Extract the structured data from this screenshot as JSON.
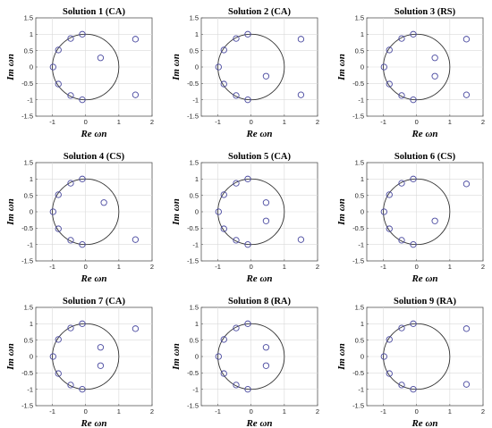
{
  "chart_data": [
    {
      "type": "scatter",
      "title": "Solution 1 (CA)",
      "xlabel": "Re ωn",
      "ylabel": "Im ωn",
      "xlim": [
        -1.5,
        2
      ],
      "ylim": [
        -1.5,
        1.5
      ],
      "grid": true,
      "xticks": [
        -1,
        0,
        1,
        2
      ],
      "yticks": [
        -1.5,
        -1,
        -0.5,
        0,
        0.5,
        1,
        1.5
      ],
      "unit_circle": true,
      "points": [
        [
          -0.1,
          1
        ],
        [
          -0.45,
          0.87
        ],
        [
          -0.82,
          0.52
        ],
        [
          -0.98,
          0
        ],
        [
          -0.82,
          -0.52
        ],
        [
          -0.45,
          -0.87
        ],
        [
          -0.1,
          -1
        ],
        [
          0.45,
          0.28
        ],
        [
          1.5,
          0.85
        ],
        [
          1.5,
          -0.85
        ]
      ]
    },
    {
      "type": "scatter",
      "title": "Solution 2 (CA)",
      "xlabel": "Re ωn",
      "ylabel": "Im ωn",
      "xlim": [
        -1.5,
        2
      ],
      "ylim": [
        -1.5,
        1.5
      ],
      "grid": true,
      "xticks": [
        -1,
        0,
        1,
        2
      ],
      "yticks": [
        -1.5,
        -1,
        -0.5,
        0,
        0.5,
        1,
        1.5
      ],
      "unit_circle": true,
      "points": [
        [
          -0.1,
          1
        ],
        [
          -0.45,
          0.87
        ],
        [
          -0.82,
          0.52
        ],
        [
          -0.98,
          0
        ],
        [
          -0.82,
          -0.52
        ],
        [
          -0.45,
          -0.87
        ],
        [
          -0.1,
          -1
        ],
        [
          0.45,
          -0.28
        ],
        [
          1.5,
          0.85
        ],
        [
          1.5,
          -0.85
        ]
      ]
    },
    {
      "type": "scatter",
      "title": "Solution 3 (RS)",
      "xlabel": "Re ωn",
      "ylabel": "Im ωn",
      "xlim": [
        -1.5,
        2
      ],
      "ylim": [
        -1.5,
        1.5
      ],
      "grid": true,
      "xticks": [
        -1,
        0,
        1,
        2
      ],
      "yticks": [
        -1.5,
        -1,
        -0.5,
        0,
        0.5,
        1,
        1.5
      ],
      "unit_circle": true,
      "points": [
        [
          -0.1,
          1
        ],
        [
          -0.45,
          0.87
        ],
        [
          -0.82,
          0.52
        ],
        [
          -0.98,
          0
        ],
        [
          -0.82,
          -0.52
        ],
        [
          -0.45,
          -0.87
        ],
        [
          -0.1,
          -1
        ],
        [
          0.55,
          0.28
        ],
        [
          0.55,
          -0.28
        ],
        [
          1.5,
          0.85
        ],
        [
          1.5,
          -0.85
        ]
      ]
    },
    {
      "type": "scatter",
      "title": "Solution 4 (CS)",
      "xlabel": "Re ωn",
      "ylabel": "Im ωn",
      "xlim": [
        -1.5,
        2
      ],
      "ylim": [
        -1.5,
        1.5
      ],
      "grid": true,
      "xticks": [
        -1,
        0,
        1,
        2
      ],
      "yticks": [
        -1.5,
        -1,
        -0.5,
        0,
        0.5,
        1,
        1.5
      ],
      "unit_circle": true,
      "points": [
        [
          -0.1,
          1
        ],
        [
          -0.45,
          0.87
        ],
        [
          -0.82,
          0.52
        ],
        [
          -0.98,
          0
        ],
        [
          -0.82,
          -0.52
        ],
        [
          -0.45,
          -0.87
        ],
        [
          -0.1,
          -1
        ],
        [
          0.55,
          0.28
        ],
        [
          1.5,
          -0.85
        ]
      ]
    },
    {
      "type": "scatter",
      "title": "Solution 5 (CA)",
      "xlabel": "Re ωn",
      "ylabel": "Im ωn",
      "xlim": [
        -1.5,
        2
      ],
      "ylim": [
        -1.5,
        1.5
      ],
      "grid": true,
      "xticks": [
        -1,
        0,
        1,
        2
      ],
      "yticks": [
        -1.5,
        -1,
        -0.5,
        0,
        0.5,
        1,
        1.5
      ],
      "unit_circle": true,
      "points": [
        [
          -0.1,
          1
        ],
        [
          -0.45,
          0.87
        ],
        [
          -0.82,
          0.52
        ],
        [
          -0.98,
          0
        ],
        [
          -0.82,
          -0.52
        ],
        [
          -0.45,
          -0.87
        ],
        [
          -0.1,
          -1
        ],
        [
          0.45,
          0.28
        ],
        [
          0.45,
          -0.28
        ],
        [
          1.5,
          -0.85
        ]
      ]
    },
    {
      "type": "scatter",
      "title": "Solution 6 (CS)",
      "xlabel": "Re ωn",
      "ylabel": "Im ωn",
      "xlim": [
        -1.5,
        2
      ],
      "ylim": [
        -1.5,
        1.5
      ],
      "grid": true,
      "xticks": [
        -1,
        0,
        1,
        2
      ],
      "yticks": [
        -1.5,
        -1,
        -0.5,
        0,
        0.5,
        1,
        1.5
      ],
      "unit_circle": true,
      "points": [
        [
          -0.1,
          1
        ],
        [
          -0.45,
          0.87
        ],
        [
          -0.82,
          0.52
        ],
        [
          -0.98,
          0
        ],
        [
          -0.82,
          -0.52
        ],
        [
          -0.45,
          -0.87
        ],
        [
          -0.1,
          -1
        ],
        [
          0.55,
          -0.28
        ],
        [
          1.5,
          0.85
        ]
      ]
    },
    {
      "type": "scatter",
      "title": "Solution 7 (CA)",
      "xlabel": "Re ωn",
      "ylabel": "Im ωn",
      "xlim": [
        -1.5,
        2
      ],
      "ylim": [
        -1.5,
        1.5
      ],
      "grid": true,
      "xticks": [
        -1,
        0,
        1,
        2
      ],
      "yticks": [
        -1.5,
        -1,
        -0.5,
        0,
        0.5,
        1,
        1.5
      ],
      "unit_circle": true,
      "points": [
        [
          -0.1,
          1
        ],
        [
          -0.45,
          0.87
        ],
        [
          -0.82,
          0.52
        ],
        [
          -0.98,
          0
        ],
        [
          -0.82,
          -0.52
        ],
        [
          -0.45,
          -0.87
        ],
        [
          -0.1,
          -1
        ],
        [
          0.45,
          0.28
        ],
        [
          0.45,
          -0.28
        ],
        [
          1.5,
          0.85
        ]
      ]
    },
    {
      "type": "scatter",
      "title": "Solution 8 (RA)",
      "xlabel": "Re ωn",
      "ylabel": "Im ωn",
      "xlim": [
        -1.5,
        2
      ],
      "ylim": [
        -1.5,
        1.5
      ],
      "grid": true,
      "xticks": [
        -1,
        0,
        1,
        2
      ],
      "yticks": [
        -1.5,
        -1,
        -0.5,
        0,
        0.5,
        1,
        1.5
      ],
      "unit_circle": true,
      "points": [
        [
          -0.1,
          1
        ],
        [
          -0.45,
          0.87
        ],
        [
          -0.82,
          0.52
        ],
        [
          -0.98,
          0
        ],
        [
          -0.82,
          -0.52
        ],
        [
          -0.45,
          -0.87
        ],
        [
          -0.1,
          -1
        ],
        [
          0.45,
          0.28
        ],
        [
          0.45,
          -0.28
        ]
      ]
    },
    {
      "type": "scatter",
      "title": "Solution 9 (RA)",
      "xlabel": "Re ωn",
      "ylabel": "Im ωn",
      "xlim": [
        -1.5,
        2
      ],
      "ylim": [
        -1.5,
        1.5
      ],
      "grid": true,
      "xticks": [
        -1,
        0,
        1,
        2
      ],
      "yticks": [
        -1.5,
        -1,
        -0.5,
        0,
        0.5,
        1,
        1.5
      ],
      "unit_circle": true,
      "points": [
        [
          -0.1,
          1
        ],
        [
          -0.45,
          0.87
        ],
        [
          -0.82,
          0.52
        ],
        [
          -0.98,
          0
        ],
        [
          -0.82,
          -0.52
        ],
        [
          -0.45,
          -0.87
        ],
        [
          -0.1,
          -1
        ],
        [
          1.5,
          0.85
        ],
        [
          1.5,
          -0.85
        ]
      ]
    }
  ],
  "colors": {
    "points": "#4a4aa0",
    "circle": "#333333",
    "grid": "#d9d9d9"
  }
}
